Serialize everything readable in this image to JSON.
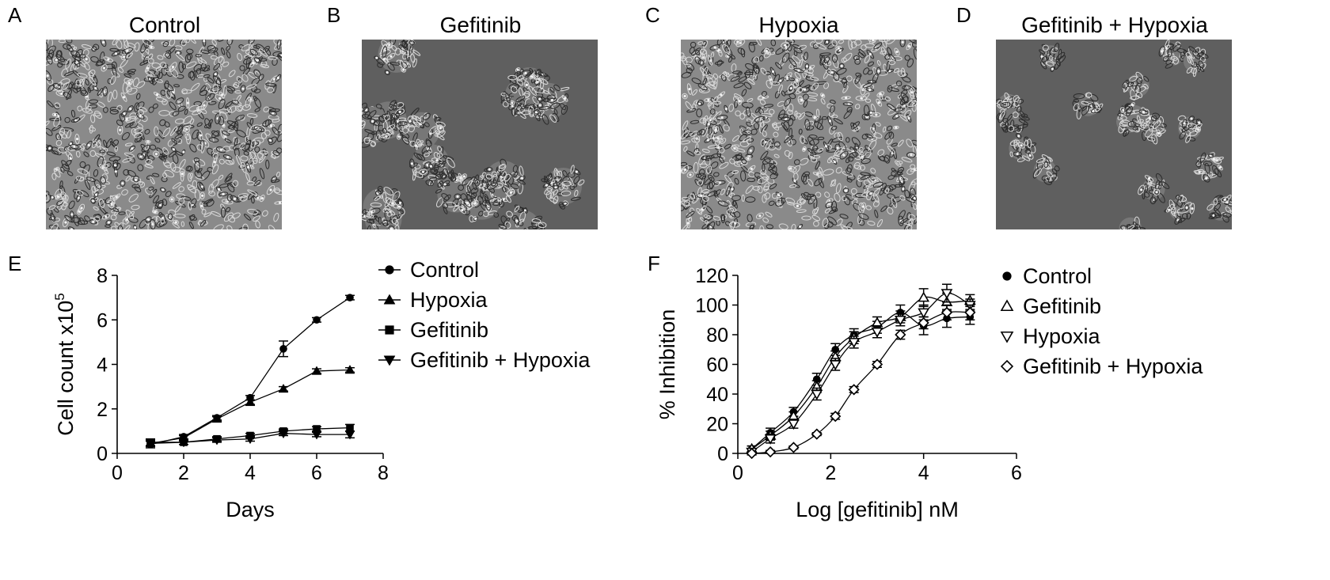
{
  "panels": {
    "A": {
      "letter": "A",
      "title": "Control"
    },
    "B": {
      "letter": "B",
      "title": "Gefitinib"
    },
    "C": {
      "letter": "C",
      "title": "Hypoxia"
    },
    "D": {
      "letter": "D",
      "title": "Gefitinib + Hypoxia"
    },
    "E": {
      "letter": "E"
    },
    "F": {
      "letter": "F"
    }
  },
  "colors": {
    "line": "#000000",
    "micro_bg_dense": "#8a8a8a",
    "micro_bg_sparse": "#5f5f5f",
    "cell": "#d8d8d8",
    "cell_dark": "#2c2c2c"
  },
  "chart_data": [
    {
      "type": "line",
      "panel": "E",
      "xlabel": "Days",
      "ylabel": "Cell count x10",
      "ylabel_superscript": "5",
      "xlim": [
        0,
        8
      ],
      "ylim": [
        0,
        8
      ],
      "xticks": [
        0,
        2,
        4,
        6,
        8
      ],
      "yticks": [
        0,
        2,
        4,
        6,
        8
      ],
      "x": [
        1,
        2,
        3,
        4,
        5,
        6,
        7
      ],
      "series": [
        {
          "name": "Control",
          "marker": "circle",
          "values": [
            0.4,
            0.75,
            1.6,
            2.5,
            4.7,
            6.0,
            7.0
          ],
          "err": [
            0.15,
            0.1,
            0.1,
            0.1,
            0.35,
            0.1,
            0.1
          ]
        },
        {
          "name": "Hypoxia",
          "marker": "triangle-up",
          "values": [
            0.45,
            0.7,
            1.55,
            2.3,
            2.9,
            3.7,
            3.75
          ],
          "err": [
            0.1,
            0.1,
            0.1,
            0.1,
            0.1,
            0.1,
            0.1
          ]
        },
        {
          "name": "Gefitinib",
          "marker": "square",
          "values": [
            0.5,
            0.5,
            0.65,
            0.8,
            1.0,
            1.1,
            1.15
          ],
          "err": [
            0.15,
            0.1,
            0.1,
            0.1,
            0.1,
            0.1,
            0.15
          ]
        },
        {
          "name": "Gefitinib + Hypoxia",
          "marker": "triangle-down",
          "values": [
            0.45,
            0.5,
            0.6,
            0.65,
            0.9,
            0.85,
            0.85
          ],
          "err": [
            0.1,
            0.1,
            0.1,
            0.1,
            0.1,
            0.1,
            0.15
          ]
        }
      ]
    },
    {
      "type": "line",
      "panel": "F",
      "xlabel": "Log [gefitinib] nM",
      "ylabel": "% Inhibition",
      "xlim": [
        0,
        6
      ],
      "ylim": [
        0,
        120
      ],
      "xticks": [
        0,
        2,
        4,
        6
      ],
      "yticks": [
        0,
        20,
        40,
        60,
        80,
        100,
        120
      ],
      "x": [
        0.3,
        0.7,
        1.2,
        1.7,
        2.1,
        2.5,
        3.0,
        3.5,
        4.0,
        4.5,
        5.0
      ],
      "series": [
        {
          "name": "Control",
          "marker": "circle",
          "values": [
            3,
            14,
            28,
            50,
            70,
            80,
            85,
            95,
            86,
            91,
            92
          ],
          "err": [
            2,
            3,
            3,
            4,
            4,
            4,
            4,
            5,
            6,
            6,
            5
          ]
        },
        {
          "name": "Gefitinib",
          "marker": "triangle-up-open",
          "values": [
            3,
            12,
            25,
            45,
            65,
            78,
            88,
            92,
            105,
            102,
            103
          ],
          "err": [
            2,
            3,
            3,
            4,
            4,
            4,
            4,
            4,
            6,
            6,
            4
          ]
        },
        {
          "name": "Hypoxia",
          "marker": "triangle-down-open",
          "values": [
            1,
            10,
            20,
            40,
            60,
            75,
            82,
            90,
            95,
            108,
            100
          ],
          "err": [
            2,
            3,
            3,
            4,
            4,
            4,
            4,
            4,
            5,
            6,
            4
          ]
        },
        {
          "name": "Gefitinib + Hypoxia",
          "marker": "diamond-open",
          "values": [
            0,
            1,
            4,
            13,
            25,
            43,
            60,
            80,
            88,
            95,
            95
          ],
          "err": [
            1,
            1,
            1,
            1,
            2,
            2,
            2,
            3,
            4,
            5,
            5
          ]
        }
      ]
    }
  ]
}
